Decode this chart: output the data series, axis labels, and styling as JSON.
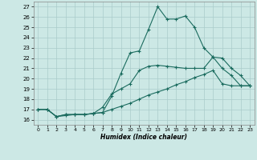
{
  "xlabel": "Humidex (Indice chaleur)",
  "bg_color": "#cce8e5",
  "grid_color": "#aaccca",
  "line_color": "#1a6b5e",
  "xlim": [
    -0.5,
    23.5
  ],
  "ylim": [
    15.5,
    27.5
  ],
  "xticks": [
    0,
    1,
    2,
    3,
    4,
    5,
    6,
    7,
    8,
    9,
    10,
    11,
    12,
    13,
    14,
    15,
    16,
    17,
    18,
    19,
    20,
    21,
    22,
    23
  ],
  "yticks": [
    16,
    17,
    18,
    19,
    20,
    21,
    22,
    23,
    24,
    25,
    26,
    27
  ],
  "line1_x": [
    0,
    1,
    2,
    3,
    4,
    5,
    6,
    7,
    8,
    9,
    10,
    11,
    12,
    13,
    14,
    15,
    16,
    17,
    18,
    19,
    20,
    21,
    22,
    23
  ],
  "line1_y": [
    17.0,
    17.0,
    16.3,
    16.5,
    16.5,
    16.5,
    16.6,
    16.7,
    18.3,
    20.5,
    22.5,
    22.7,
    24.8,
    27.0,
    25.8,
    25.8,
    26.1,
    25.0,
    23.0,
    22.1,
    21.0,
    20.3,
    19.3,
    19.3
  ],
  "line2_x": [
    0,
    1,
    2,
    3,
    4,
    5,
    6,
    7,
    8,
    9,
    10,
    11,
    12,
    13,
    14,
    15,
    16,
    17,
    18,
    19,
    20,
    21,
    22,
    23
  ],
  "line2_y": [
    17.0,
    17.0,
    16.3,
    16.5,
    16.5,
    16.5,
    16.6,
    17.2,
    18.5,
    19.0,
    19.5,
    20.8,
    21.2,
    21.3,
    21.2,
    21.1,
    21.0,
    21.0,
    21.0,
    22.1,
    22.0,
    21.0,
    20.3,
    19.3
  ],
  "line3_x": [
    0,
    1,
    2,
    3,
    4,
    5,
    6,
    7,
    8,
    9,
    10,
    11,
    12,
    13,
    14,
    15,
    16,
    17,
    18,
    19,
    20,
    21,
    22,
    23
  ],
  "line3_y": [
    17.0,
    17.0,
    16.3,
    16.4,
    16.5,
    16.5,
    16.6,
    16.7,
    17.0,
    17.3,
    17.6,
    18.0,
    18.4,
    18.7,
    19.0,
    19.4,
    19.7,
    20.1,
    20.4,
    20.8,
    19.5,
    19.3,
    19.3,
    19.3
  ]
}
